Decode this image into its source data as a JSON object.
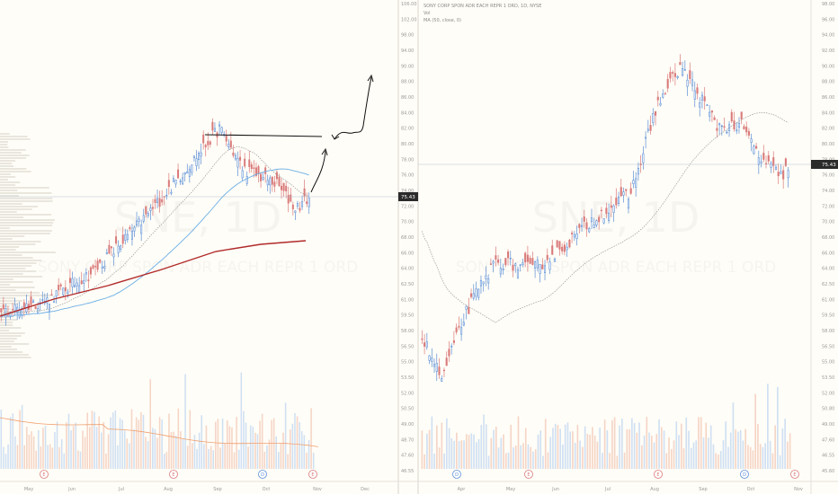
{
  "colors": {
    "background": "#fffdf7",
    "up": "#5b8fd6",
    "down": "#d97b7b",
    "vol_up": "#cfe0f3",
    "vol_down": "#f5d5c6",
    "ma50": "#6aaee6",
    "ma200": "#b02a2a",
    "ma_dotted": "#9a9a9a",
    "axis_text": "#9a9a9a",
    "price_label_bg": "#2b2b2b"
  },
  "left_pane": {
    "watermark_symbol": "SNE, 1D",
    "watermark_name": "SONY CORP SPON ADR EACH REPR 1 ORD",
    "last_price": "75.43",
    "price_ticks": [
      "106.00",
      "102.00",
      "98.00",
      "94.00",
      "90.00",
      "88.00",
      "86.00",
      "84.00",
      "82.00",
      "80.00",
      "78.00",
      "76.00",
      "74.00",
      "72.00",
      "70.00",
      "68.00",
      "66.00",
      "64.00",
      "62.50",
      "61.00",
      "59.50",
      "58.00",
      "56.50",
      "55.00",
      "53.50",
      "52.00",
      "50.50",
      "49.00",
      "48.70",
      "47.60",
      "46.55"
    ],
    "time_ticks": [
      "May",
      "Jun",
      "Jul",
      "Aug",
      "Sep",
      "Oct",
      "Nov",
      "Dec"
    ],
    "event_markers": [
      "E",
      "E",
      "D",
      "E"
    ]
  },
  "right_pane": {
    "legend": {
      "title": "SONY CORP SPON ADR EACH REPR 1 ORD, 1D, NYSE",
      "vol_label": "Vol",
      "ma_label": "MA (50, close, 0)"
    },
    "watermark_symbol": "SNE, 1D",
    "watermark_name": "SONY CORP SPON ADR EACH REPR 1 ORD",
    "last_price": "75.43",
    "price_ticks": [
      "98.00",
      "96.00",
      "94.00",
      "92.00",
      "90.00",
      "88.00",
      "86.00",
      "84.00",
      "82.00",
      "80.00",
      "78.00",
      "76.00",
      "74.00",
      "72.00",
      "70.00",
      "68.00",
      "66.00",
      "64.00",
      "62.50",
      "61.00",
      "59.50",
      "58.00",
      "56.50",
      "55.00",
      "53.50",
      "52.00",
      "50.80",
      "49.00",
      "47.60",
      "46.55",
      "45.60"
    ],
    "time_ticks": [
      "Apr",
      "May",
      "Jun",
      "Jul",
      "Aug",
      "Sep",
      "Oct",
      "Nov"
    ],
    "event_markers": [
      "D",
      "E",
      "E",
      "D",
      "E"
    ]
  }
}
